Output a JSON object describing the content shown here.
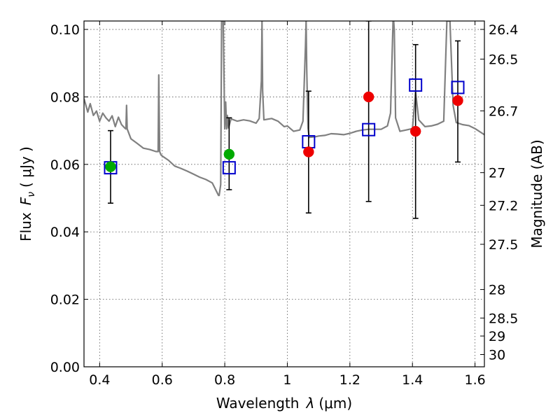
{
  "chart_data": {
    "type": "scatter",
    "xlabel_prefix": "Wavelength",
    "xlabel_sym": "λ",
    "xlabel_unit": "(μm)",
    "ylabel_prefix": "Flux",
    "ylabel_sym": "F",
    "ylabel_sub": "ν",
    "ylabel_unit": "( μJy )",
    "y2label": "Magnitude (AB)",
    "xlim": [
      0.35,
      1.63
    ],
    "ylim": [
      0.0,
      0.1025
    ],
    "grid": true,
    "x_ticks": [
      0.4,
      0.6,
      0.8,
      1.0,
      1.2,
      1.4,
      1.6
    ],
    "x_tick_labels": [
      "0.4",
      "0.6",
      "0.8",
      "1",
      "1.2",
      "1.4",
      "1.6"
    ],
    "y_ticks": [
      0.0,
      0.02,
      0.04,
      0.06,
      0.08,
      0.1
    ],
    "y_tick_labels": [
      "0.00",
      "0.02",
      "0.04",
      "0.06",
      "0.08",
      "0.10"
    ],
    "y2_ticks": [
      26.4,
      26.5,
      26.7,
      27,
      27.2,
      27.5,
      28,
      28.5,
      29,
      30
    ],
    "y2_tick_labels": [
      "26.4",
      "26.5",
      "26.7",
      "27",
      "27.2",
      "27.5",
      "28",
      "28.5",
      "29",
      "30"
    ],
    "model_spectrum": {
      "color": "#808080",
      "x": [
        0.35,
        0.362,
        0.37,
        0.38,
        0.39,
        0.4,
        0.41,
        0.42,
        0.43,
        0.44,
        0.45,
        0.46,
        0.47,
        0.48,
        0.484,
        0.486,
        0.488,
        0.5,
        0.52,
        0.54,
        0.56,
        0.58,
        0.587,
        0.589,
        0.592,
        0.596,
        0.6,
        0.62,
        0.64,
        0.66,
        0.68,
        0.7,
        0.72,
        0.74,
        0.76,
        0.78,
        0.782,
        0.787,
        0.79,
        0.795,
        0.8,
        0.803,
        0.806,
        0.808,
        0.812,
        0.82,
        0.84,
        0.86,
        0.88,
        0.9,
        0.91,
        0.917,
        0.919,
        0.921,
        0.925,
        0.95,
        0.97,
        0.99,
        1.0,
        1.02,
        1.04,
        1.05,
        1.058,
        1.06,
        1.062,
        1.066,
        1.07,
        1.09,
        1.1,
        1.12,
        1.14,
        1.16,
        1.18,
        1.2,
        1.22,
        1.24,
        1.26,
        1.28,
        1.3,
        1.32,
        1.33,
        1.338,
        1.34,
        1.342,
        1.346,
        1.36,
        1.38,
        1.4,
        1.41,
        1.42,
        1.44,
        1.46,
        1.48,
        1.5,
        1.51,
        1.52,
        1.53,
        1.54,
        1.56,
        1.58,
        1.6,
        1.63
      ],
      "y": [
        0.0795,
        0.0755,
        0.078,
        0.0745,
        0.0758,
        0.0728,
        0.0752,
        0.0738,
        0.0728,
        0.0744,
        0.0712,
        0.074,
        0.0718,
        0.0708,
        0.0705,
        0.0775,
        0.0705,
        0.0676,
        0.0662,
        0.0648,
        0.0644,
        0.0638,
        0.0638,
        0.0865,
        0.0638,
        0.0628,
        0.0625,
        0.0612,
        0.0595,
        0.0588,
        0.058,
        0.0571,
        0.0562,
        0.0555,
        0.0545,
        0.0508,
        0.0508,
        0.054,
        0.1025,
        0.1025,
        0.0705,
        0.0785,
        0.0705,
        0.0745,
        0.0708,
        0.0735,
        0.0728,
        0.0732,
        0.0729,
        0.0722,
        0.0736,
        0.0848,
        0.1025,
        0.0818,
        0.0732,
        0.0736,
        0.0728,
        0.0712,
        0.0714,
        0.0698,
        0.0702,
        0.0728,
        0.0952,
        0.1025,
        0.0882,
        0.0708,
        0.068,
        0.0682,
        0.0684,
        0.0686,
        0.0691,
        0.069,
        0.0688,
        0.0692,
        0.0698,
        0.0702,
        0.0704,
        0.0704,
        0.0704,
        0.0714,
        0.0752,
        0.1025,
        0.1025,
        0.0998,
        0.0738,
        0.0698,
        0.0702,
        0.0706,
        0.0815,
        0.0732,
        0.0712,
        0.0714,
        0.0719,
        0.0728,
        0.1025,
        0.1025,
        0.0775,
        0.0724,
        0.0718,
        0.0715,
        0.0706,
        0.0688
      ]
    },
    "photometry_green": {
      "color": "#00aa00",
      "x": [
        0.435,
        0.814
      ],
      "y": [
        0.0593,
        0.063
      ],
      "yerr_low": [
        0.0485,
        0.0525
      ],
      "yerr_high": [
        0.07,
        0.0738
      ]
    },
    "photometry_red": {
      "color": "#ee0000",
      "x": [
        1.068,
        1.26,
        1.41,
        1.545
      ],
      "y": [
        0.0637,
        0.08,
        0.0698,
        0.0789
      ],
      "yerr_low": [
        0.0456,
        0.049,
        0.044,
        0.0607
      ],
      "yerr_high": [
        0.0817,
        0.1025,
        0.0955,
        0.0966
      ]
    },
    "model_photometry_blue_squares": {
      "color": "#0000cc",
      "x": [
        0.435,
        0.814,
        1.068,
        1.26,
        1.41,
        1.545
      ],
      "y": [
        0.059,
        0.059,
        0.0667,
        0.0703,
        0.0835,
        0.0828
      ]
    }
  }
}
